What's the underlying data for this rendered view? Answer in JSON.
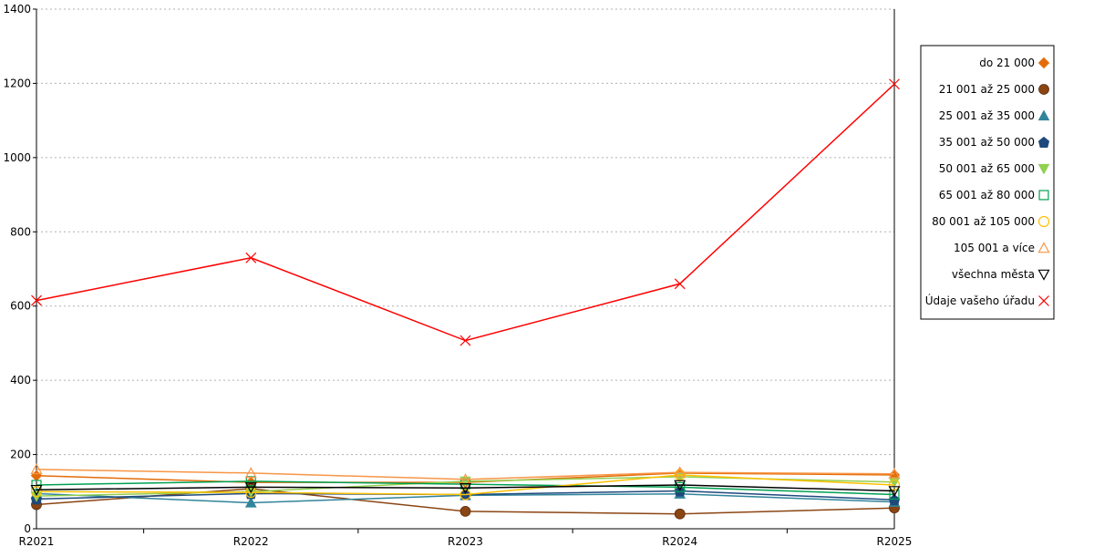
{
  "chart_data": {
    "type": "line",
    "x": [
      "R2021",
      "R2022",
      "R2023",
      "R2024",
      "R2025"
    ],
    "ylim": [
      0,
      1400
    ],
    "yticks": [
      0,
      200,
      400,
      600,
      800,
      1000,
      1200,
      1400
    ],
    "grid": {
      "horizontal": true,
      "style": "dotted"
    },
    "legend_position": "right",
    "series": [
      {
        "name": "do 21 000",
        "color": "#e36c09",
        "marker": "diamond-filled",
        "values": [
          143,
          125,
          125,
          150,
          145
        ]
      },
      {
        "name": "21 001 až 25 000",
        "color": "#8b4513",
        "marker": "circle-filled",
        "values": [
          65,
          108,
          47,
          40,
          56
        ]
      },
      {
        "name": "25 001 až 35 000",
        "color": "#31849b",
        "marker": "triangle-filled",
        "values": [
          95,
          70,
          90,
          94,
          72
        ]
      },
      {
        "name": "35 001 až 50 000",
        "color": "#1f497d",
        "marker": "pentagon-filled",
        "values": [
          80,
          95,
          92,
          102,
          78
        ]
      },
      {
        "name": "50 001 až 65 000",
        "color": "#92d050",
        "marker": "triangle-down-filled",
        "values": [
          88,
          100,
          128,
          140,
          126
        ]
      },
      {
        "name": "65 001 až 80 000",
        "color": "#00a050",
        "marker": "square-open",
        "values": [
          118,
          128,
          120,
          112,
          92
        ]
      },
      {
        "name": "80 001 až 105 000",
        "color": "#ffc000",
        "marker": "circle-open",
        "values": [
          100,
          98,
          92,
          145,
          118
        ]
      },
      {
        "name": "105 001 a více",
        "color": "#f79646",
        "marker": "triangle-open",
        "values": [
          160,
          150,
          133,
          152,
          148
        ]
      },
      {
        "name": "všechna města",
        "color": "#000000",
        "marker": "triangle-down-open",
        "values": [
          105,
          112,
          110,
          118,
          102
        ]
      },
      {
        "name": "Údaje vašeho úřadu",
        "color": "#ff0000",
        "marker": "x",
        "values": [
          615,
          730,
          507,
          660,
          1198
        ]
      }
    ]
  }
}
